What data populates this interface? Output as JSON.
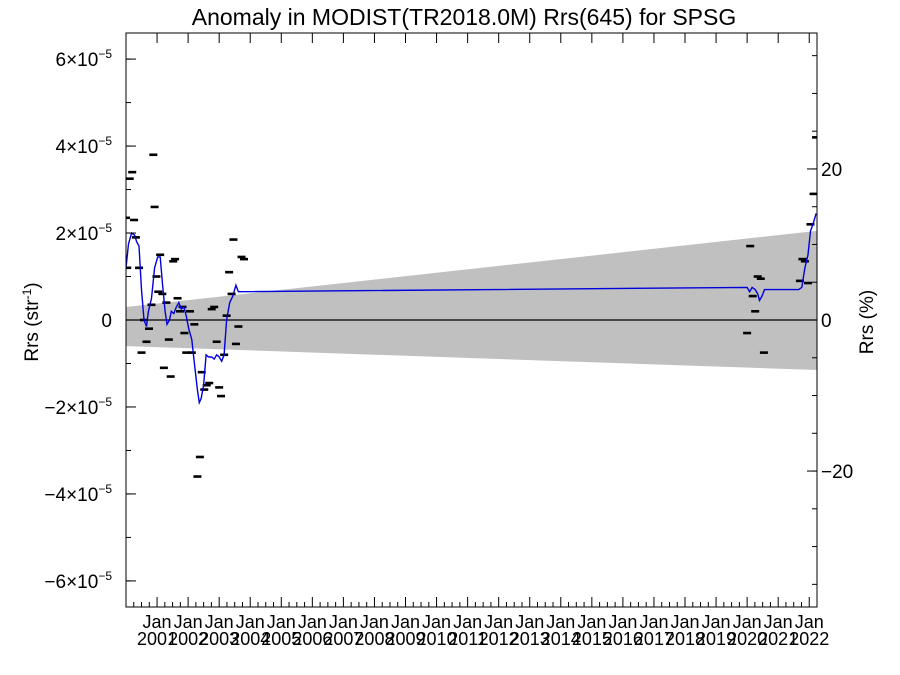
{
  "chart_data": {
    "type": "line",
    "title": "Anomaly in MODIST(TR2018.0M) Rrs(645) for SPSG",
    "ylabel_main": "Rrs (str",
    "ylabel_sup": "-1",
    "ylabel_close": ")",
    "y2label": "Rrs (%)",
    "xlim": [
      2000.0,
      2022.25
    ],
    "ylim": [
      -6.6e-05,
      6.6e-05
    ],
    "y2lim": [
      -38.0,
      38.0
    ],
    "y_ticks": [
      {
        "value": -6e-05,
        "mant": "−6×10",
        "exp": "−5"
      },
      {
        "value": -4e-05,
        "mant": "−4×10",
        "exp": "−5"
      },
      {
        "value": -2e-05,
        "mant": "−2×10",
        "exp": "−5"
      },
      {
        "value": 0,
        "mant": "0",
        "exp": ""
      },
      {
        "value": 2e-05,
        "mant": "2×10",
        "exp": "−5"
      },
      {
        "value": 4e-05,
        "mant": "4×10",
        "exp": "−5"
      },
      {
        "value": 6e-05,
        "mant": "6×10",
        "exp": "−5"
      }
    ],
    "y2_ticks": [
      {
        "value": -20,
        "label": "−20"
      },
      {
        "value": 0,
        "label": "0"
      },
      {
        "value": 20,
        "label": "20"
      }
    ],
    "x_ticks": [
      {
        "value": 2001,
        "top": "Jan",
        "bottom": "2001"
      },
      {
        "value": 2002,
        "top": "Jan",
        "bottom": "2002"
      },
      {
        "value": 2003,
        "top": "Jan",
        "bottom": "2003"
      },
      {
        "value": 2004,
        "top": "Jan",
        "bottom": "2004"
      },
      {
        "value": 2005,
        "top": "Jan",
        "bottom": "2005"
      },
      {
        "value": 2006,
        "top": "Jan",
        "bottom": "2006"
      },
      {
        "value": 2007,
        "top": "Jan",
        "bottom": "2007"
      },
      {
        "value": 2008,
        "top": "Jan",
        "bottom": "2008"
      },
      {
        "value": 2009,
        "top": "Jan",
        "bottom": "2009"
      },
      {
        "value": 2010,
        "top": "Jan",
        "bottom": "2010"
      },
      {
        "value": 2011,
        "top": "Jan",
        "bottom": "2011"
      },
      {
        "value": 2012,
        "top": "Jan",
        "bottom": "2012"
      },
      {
        "value": 2013,
        "top": "Jan",
        "bottom": "2013"
      },
      {
        "value": 2014,
        "top": "Jan",
        "bottom": "2014"
      },
      {
        "value": 2015,
        "top": "Jan",
        "bottom": "2015"
      },
      {
        "value": 2016,
        "top": "Jan",
        "bottom": "2016"
      },
      {
        "value": 2017,
        "top": "Jan",
        "bottom": "2017"
      },
      {
        "value": 2018,
        "top": "Jan",
        "bottom": "2018"
      },
      {
        "value": 2019,
        "top": "Jan",
        "bottom": "2019"
      },
      {
        "value": 2020,
        "top": "Jan",
        "bottom": "2020"
      },
      {
        "value": 2021,
        "top": "Jan",
        "bottom": "2021"
      },
      {
        "value": 2022,
        "top": "Jan",
        "bottom": "2022"
      }
    ],
    "band": {
      "color": "#c0c0c0",
      "upper": [
        [
          2000.0,
          3e-06
        ],
        [
          2022.25,
          2.05e-05
        ]
      ],
      "lower": [
        [
          2000.0,
          -6e-06
        ],
        [
          2022.25,
          -1.15e-05
        ]
      ]
    },
    "zero_line": true,
    "series": [
      {
        "kind": "markers",
        "color": "#000000",
        "points": [
          [
            2000.0,
            2.35e-05
          ],
          [
            2000.04,
            1.2e-05
          ],
          [
            2000.12,
            3.25e-05
          ],
          [
            2000.2,
            3.4e-05
          ],
          [
            2000.26,
            2.3e-05
          ],
          [
            2000.32,
            1.9e-05
          ],
          [
            2000.42,
            1.2e-05
          ],
          [
            2000.5,
            -7.5e-06
          ],
          [
            2000.58,
            0
          ],
          [
            2000.66,
            -5e-06
          ],
          [
            2000.74,
            -2e-06
          ],
          [
            2000.82,
            3.5e-06
          ],
          [
            2000.88,
            3.8e-05
          ],
          [
            2000.92,
            2.6e-05
          ],
          [
            2000.98,
            1e-05
          ],
          [
            2001.04,
            6.5e-06
          ],
          [
            2001.1,
            1.5e-05
          ],
          [
            2001.17,
            6e-06
          ],
          [
            2001.22,
            -1.1e-05
          ],
          [
            2001.3,
            4e-06
          ],
          [
            2001.38,
            -4.5e-06
          ],
          [
            2001.44,
            -1.3e-05
          ],
          [
            2001.52,
            1.35e-05
          ],
          [
            2001.58,
            1.4e-05
          ],
          [
            2001.66,
            5e-06
          ],
          [
            2001.74,
            2e-06
          ],
          [
            2001.82,
            3e-06
          ],
          [
            2001.88,
            -3e-06
          ],
          [
            2001.94,
            -7.5e-06
          ],
          [
            2002.06,
            2e-06
          ],
          [
            2002.12,
            -7.5e-06
          ],
          [
            2002.2,
            -1e-06
          ],
          [
            2002.3,
            -3.6e-05
          ],
          [
            2002.38,
            -3.15e-05
          ],
          [
            2002.44,
            -1.2e-05
          ],
          [
            2002.52,
            -1.6e-05
          ],
          [
            2002.6,
            -1.5e-05
          ],
          [
            2002.68,
            -1.45e-05
          ],
          [
            2002.76,
            2.5e-06
          ],
          [
            2002.84,
            3e-06
          ],
          [
            2002.92,
            -5e-06
          ],
          [
            2003.0,
            -1.55e-05
          ],
          [
            2003.06,
            -1.75e-05
          ],
          [
            2003.16,
            -8e-06
          ],
          [
            2003.24,
            1e-06
          ],
          [
            2003.32,
            1.1e-05
          ],
          [
            2003.4,
            6e-06
          ],
          [
            2003.46,
            1.85e-05
          ],
          [
            2003.54,
            -5.5e-06
          ],
          [
            2003.62,
            -1.5e-06
          ],
          [
            2003.72,
            1.45e-05
          ],
          [
            2003.8,
            1.4e-05
          ],
          [
            2020.0,
            -3e-06
          ],
          [
            2020.1,
            1.7e-05
          ],
          [
            2020.18,
            5.5e-06
          ],
          [
            2020.26,
            2e-06
          ],
          [
            2020.34,
            1e-05
          ],
          [
            2020.44,
            9.5e-06
          ],
          [
            2020.54,
            -7.5e-06
          ],
          [
            2021.7,
            9e-06
          ],
          [
            2021.78,
            1.4e-05
          ],
          [
            2021.86,
            1.35e-05
          ],
          [
            2021.96,
            8.5e-06
          ],
          [
            2022.04,
            2.2e-05
          ],
          [
            2022.14,
            2.9e-05
          ],
          [
            2022.22,
            4.2e-05
          ]
        ]
      },
      {
        "kind": "line",
        "color": "#0000dd",
        "points": [
          [
            2000.0,
            1.2e-05
          ],
          [
            2000.08,
            1.75e-05
          ],
          [
            2000.18,
            2e-05
          ],
          [
            2000.28,
            1.95e-05
          ],
          [
            2000.34,
            1.8e-05
          ],
          [
            2000.42,
            1.7e-05
          ],
          [
            2000.5,
            7e-06
          ],
          [
            2000.58,
            0
          ],
          [
            2000.66,
            -1.5e-06
          ],
          [
            2000.72,
            2e-06
          ],
          [
            2000.82,
            5e-06
          ],
          [
            2000.92,
            1.2e-05
          ],
          [
            2001.02,
            1.45e-05
          ],
          [
            2001.1,
            1.45e-05
          ],
          [
            2001.18,
            8e-06
          ],
          [
            2001.26,
            2e-06
          ],
          [
            2001.32,
            -1e-06
          ],
          [
            2001.4,
            0
          ],
          [
            2001.46,
            2e-06
          ],
          [
            2001.54,
            1.5e-06
          ],
          [
            2001.62,
            3e-06
          ],
          [
            2001.7,
            4e-06
          ],
          [
            2001.78,
            2.5e-06
          ],
          [
            2001.86,
            3e-06
          ],
          [
            2001.94,
            1e-06
          ],
          [
            2002.02,
            -2e-06
          ],
          [
            2002.12,
            -4.5e-06
          ],
          [
            2002.22,
            -1.1e-05
          ],
          [
            2002.3,
            -1.6e-05
          ],
          [
            2002.36,
            -1.9e-05
          ],
          [
            2002.42,
            -1.8e-05
          ],
          [
            2002.5,
            -1.5e-05
          ],
          [
            2002.58,
            -8e-06
          ],
          [
            2002.66,
            -8.5e-06
          ],
          [
            2002.76,
            -8.5e-06
          ],
          [
            2002.84,
            -9e-06
          ],
          [
            2002.92,
            -8e-06
          ],
          [
            2003.0,
            -8.5e-06
          ],
          [
            2003.08,
            -9.5e-06
          ],
          [
            2003.16,
            -8e-06
          ],
          [
            2003.24,
            0
          ],
          [
            2003.34,
            4e-06
          ],
          [
            2003.44,
            5.5e-06
          ],
          [
            2003.54,
            8e-06
          ],
          [
            2003.62,
            6.5e-06
          ],
          [
            2020.0,
            7.5e-06
          ],
          [
            2020.08,
            6.5e-06
          ],
          [
            2020.16,
            7.5e-06
          ],
          [
            2020.26,
            7e-06
          ],
          [
            2020.34,
            6e-06
          ],
          [
            2020.4,
            4.5e-06
          ],
          [
            2020.48,
            5.5e-06
          ],
          [
            2020.56,
            7e-06
          ],
          [
            2021.66,
            7e-06
          ],
          [
            2021.76,
            7.5e-06
          ],
          [
            2021.86,
            1.2e-05
          ],
          [
            2021.96,
            1.5e-05
          ],
          [
            2022.04,
            2.05e-05
          ],
          [
            2022.12,
            2.2e-05
          ],
          [
            2022.22,
            2.45e-05
          ]
        ]
      }
    ]
  }
}
